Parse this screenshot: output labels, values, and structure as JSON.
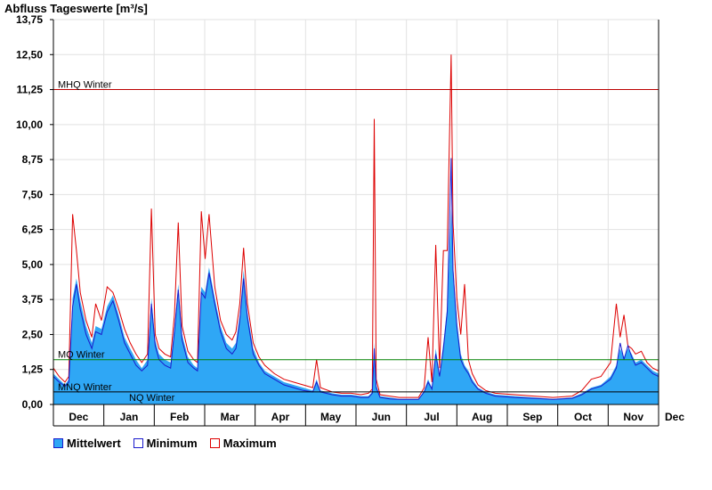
{
  "chart_data": {
    "type": "area",
    "title": "Abfluss Tageswerte [m³/s]",
    "ylim": [
      0,
      13.75
    ],
    "y_ticks": [
      "0,00",
      "1,25",
      "2,50",
      "3,75",
      "5,00",
      "6,25",
      "7,50",
      "8,75",
      "10,00",
      "11,25",
      "12,50",
      "13,75"
    ],
    "x_ticks": [
      "Dec",
      "Jan",
      "Feb",
      "Mar",
      "Apr",
      "May",
      "Jun",
      "Jul",
      "Aug",
      "Sep",
      "Oct",
      "Nov",
      "Dec"
    ],
    "grid": true,
    "colors": {
      "mittelwert": "#2fa7f5",
      "minimum": "#1a1acc",
      "maximum": "#dd0000",
      "mhq": "#bb0000",
      "mq": "#008000",
      "nq": "#000000"
    },
    "reference_lines": [
      {
        "label": "MHQ Winter",
        "value": 11.25
      },
      {
        "label": "MQ Winter",
        "value": 1.6
      },
      {
        "label": "MNQ Winter",
        "value": 0.45
      },
      {
        "label": "NQ Winter",
        "value": 0.45
      }
    ],
    "series": [
      {
        "name": "Mittelwert",
        "points": [
          [
            0,
            1.1
          ],
          [
            3,
            0.9
          ],
          [
            6,
            0.7
          ],
          [
            8,
            0.9
          ],
          [
            10,
            3.8
          ],
          [
            12,
            4.5
          ],
          [
            14,
            3.7
          ],
          [
            17,
            2.8
          ],
          [
            20,
            2.2
          ],
          [
            22,
            2.8
          ],
          [
            25,
            2.7
          ],
          [
            28,
            3.5
          ],
          [
            31,
            3.9
          ],
          [
            34,
            3.2
          ],
          [
            37,
            2.4
          ],
          [
            40,
            2.0
          ],
          [
            43,
            1.6
          ],
          [
            46,
            1.3
          ],
          [
            49,
            1.6
          ],
          [
            51,
            3.8
          ],
          [
            53,
            2.3
          ],
          [
            55,
            1.8
          ],
          [
            58,
            1.6
          ],
          [
            61,
            1.5
          ],
          [
            63,
            2.8
          ],
          [
            65,
            4.3
          ],
          [
            67,
            2.5
          ],
          [
            70,
            1.7
          ],
          [
            73,
            1.4
          ],
          [
            75,
            1.3
          ],
          [
            77,
            4.2
          ],
          [
            79,
            4.0
          ],
          [
            81,
            4.9
          ],
          [
            84,
            3.8
          ],
          [
            87,
            2.8
          ],
          [
            90,
            2.2
          ],
          [
            93,
            2.0
          ],
          [
            95,
            2.2
          ],
          [
            97,
            3.2
          ],
          [
            99,
            4.8
          ],
          [
            101,
            3.3
          ],
          [
            104,
            2.0
          ],
          [
            107,
            1.5
          ],
          [
            110,
            1.2
          ],
          [
            115,
            1.0
          ],
          [
            120,
            0.8
          ],
          [
            125,
            0.7
          ],
          [
            130,
            0.6
          ],
          [
            135,
            0.5
          ],
          [
            137,
            0.9
          ],
          [
            139,
            0.5
          ],
          [
            145,
            0.4
          ],
          [
            150,
            0.35
          ],
          [
            155,
            0.35
          ],
          [
            160,
            0.3
          ],
          [
            164,
            0.3
          ],
          [
            166,
            0.45
          ],
          [
            167,
            2.2
          ],
          [
            168,
            0.7
          ],
          [
            170,
            0.3
          ],
          [
            175,
            0.25
          ],
          [
            180,
            0.2
          ],
          [
            185,
            0.2
          ],
          [
            190,
            0.2
          ],
          [
            193,
            0.5
          ],
          [
            195,
            0.9
          ],
          [
            197,
            0.6
          ],
          [
            199,
            2.0
          ],
          [
            201,
            1.1
          ],
          [
            203,
            2.2
          ],
          [
            205,
            3.5
          ],
          [
            207,
            7.0
          ],
          [
            208,
            5.0
          ],
          [
            210,
            3.0
          ],
          [
            212,
            1.8
          ],
          [
            214,
            1.4
          ],
          [
            216,
            1.2
          ],
          [
            218,
            0.9
          ],
          [
            221,
            0.6
          ],
          [
            225,
            0.45
          ],
          [
            230,
            0.35
          ],
          [
            240,
            0.3
          ],
          [
            250,
            0.25
          ],
          [
            260,
            0.2
          ],
          [
            270,
            0.25
          ],
          [
            275,
            0.4
          ],
          [
            280,
            0.6
          ],
          [
            285,
            0.7
          ],
          [
            290,
            1.0
          ],
          [
            293,
            1.4
          ],
          [
            295,
            2.0
          ],
          [
            297,
            1.7
          ],
          [
            299,
            2.0
          ],
          [
            301,
            1.8
          ],
          [
            303,
            1.5
          ],
          [
            306,
            1.6
          ],
          [
            309,
            1.4
          ],
          [
            312,
            1.2
          ],
          [
            315,
            1.1
          ]
        ]
      },
      {
        "name": "Minimum",
        "points": [
          [
            0,
            1.0
          ],
          [
            3,
            0.8
          ],
          [
            6,
            0.65
          ],
          [
            8,
            0.8
          ],
          [
            10,
            3.5
          ],
          [
            12,
            4.3
          ],
          [
            14,
            3.4
          ],
          [
            17,
            2.5
          ],
          [
            20,
            2.0
          ],
          [
            22,
            2.6
          ],
          [
            25,
            2.5
          ],
          [
            28,
            3.3
          ],
          [
            31,
            3.7
          ],
          [
            34,
            3.0
          ],
          [
            37,
            2.2
          ],
          [
            40,
            1.8
          ],
          [
            43,
            1.4
          ],
          [
            46,
            1.2
          ],
          [
            49,
            1.4
          ],
          [
            51,
            3.6
          ],
          [
            53,
            2.1
          ],
          [
            55,
            1.6
          ],
          [
            58,
            1.4
          ],
          [
            61,
            1.3
          ],
          [
            63,
            2.6
          ],
          [
            65,
            4.1
          ],
          [
            67,
            2.3
          ],
          [
            70,
            1.5
          ],
          [
            73,
            1.3
          ],
          [
            75,
            1.2
          ],
          [
            77,
            4.0
          ],
          [
            79,
            3.8
          ],
          [
            81,
            4.7
          ],
          [
            84,
            3.6
          ],
          [
            87,
            2.6
          ],
          [
            90,
            2.0
          ],
          [
            93,
            1.8
          ],
          [
            95,
            2.0
          ],
          [
            97,
            3.0
          ],
          [
            99,
            4.5
          ],
          [
            101,
            3.1
          ],
          [
            104,
            1.8
          ],
          [
            107,
            1.4
          ],
          [
            110,
            1.1
          ],
          [
            115,
            0.9
          ],
          [
            120,
            0.7
          ],
          [
            125,
            0.6
          ],
          [
            130,
            0.5
          ],
          [
            135,
            0.45
          ],
          [
            137,
            0.8
          ],
          [
            139,
            0.45
          ],
          [
            145,
            0.35
          ],
          [
            150,
            0.3
          ],
          [
            155,
            0.3
          ],
          [
            160,
            0.25
          ],
          [
            164,
            0.25
          ],
          [
            166,
            0.4
          ],
          [
            167,
            2.0
          ],
          [
            168,
            0.6
          ],
          [
            170,
            0.25
          ],
          [
            175,
            0.2
          ],
          [
            180,
            0.18
          ],
          [
            185,
            0.18
          ],
          [
            190,
            0.18
          ],
          [
            193,
            0.45
          ],
          [
            195,
            0.8
          ],
          [
            197,
            0.55
          ],
          [
            199,
            1.8
          ],
          [
            201,
            1.0
          ],
          [
            203,
            2.0
          ],
          [
            205,
            3.3
          ],
          [
            207,
            8.8
          ],
          [
            208,
            4.8
          ],
          [
            210,
            2.8
          ],
          [
            212,
            1.6
          ],
          [
            214,
            1.3
          ],
          [
            216,
            1.1
          ],
          [
            218,
            0.8
          ],
          [
            221,
            0.55
          ],
          [
            225,
            0.4
          ],
          [
            230,
            0.3
          ],
          [
            240,
            0.25
          ],
          [
            250,
            0.22
          ],
          [
            260,
            0.18
          ],
          [
            270,
            0.22
          ],
          [
            275,
            0.35
          ],
          [
            280,
            0.55
          ],
          [
            285,
            0.65
          ],
          [
            290,
            0.9
          ],
          [
            293,
            1.3
          ],
          [
            295,
            2.2
          ],
          [
            297,
            1.6
          ],
          [
            299,
            2.1
          ],
          [
            301,
            1.7
          ],
          [
            303,
            1.4
          ],
          [
            306,
            1.5
          ],
          [
            309,
            1.3
          ],
          [
            312,
            1.1
          ],
          [
            315,
            1.0
          ]
        ]
      },
      {
        "name": "Maximum",
        "points": [
          [
            0,
            1.3
          ],
          [
            3,
            1.0
          ],
          [
            6,
            0.8
          ],
          [
            8,
            1.0
          ],
          [
            10,
            6.8
          ],
          [
            12,
            5.5
          ],
          [
            14,
            4.0
          ],
          [
            17,
            3.0
          ],
          [
            20,
            2.4
          ],
          [
            22,
            3.6
          ],
          [
            25,
            3.0
          ],
          [
            28,
            4.2
          ],
          [
            31,
            4.0
          ],
          [
            34,
            3.4
          ],
          [
            37,
            2.7
          ],
          [
            40,
            2.2
          ],
          [
            43,
            1.8
          ],
          [
            46,
            1.5
          ],
          [
            49,
            1.8
          ],
          [
            51,
            7.0
          ],
          [
            53,
            2.5
          ],
          [
            55,
            2.0
          ],
          [
            58,
            1.8
          ],
          [
            61,
            1.7
          ],
          [
            63,
            3.2
          ],
          [
            65,
            6.5
          ],
          [
            67,
            2.8
          ],
          [
            70,
            1.9
          ],
          [
            73,
            1.6
          ],
          [
            75,
            1.5
          ],
          [
            77,
            6.9
          ],
          [
            79,
            5.2
          ],
          [
            81,
            6.8
          ],
          [
            84,
            4.2
          ],
          [
            87,
            3.0
          ],
          [
            90,
            2.5
          ],
          [
            93,
            2.3
          ],
          [
            95,
            2.6
          ],
          [
            97,
            3.6
          ],
          [
            99,
            5.6
          ],
          [
            101,
            3.6
          ],
          [
            104,
            2.2
          ],
          [
            107,
            1.7
          ],
          [
            110,
            1.4
          ],
          [
            115,
            1.1
          ],
          [
            120,
            0.9
          ],
          [
            125,
            0.8
          ],
          [
            130,
            0.7
          ],
          [
            135,
            0.6
          ],
          [
            137,
            1.6
          ],
          [
            139,
            0.6
          ],
          [
            145,
            0.45
          ],
          [
            150,
            0.4
          ],
          [
            155,
            0.4
          ],
          [
            160,
            0.35
          ],
          [
            164,
            0.4
          ],
          [
            166,
            0.55
          ],
          [
            167,
            10.2
          ],
          [
            168,
            0.9
          ],
          [
            170,
            0.35
          ],
          [
            175,
            0.3
          ],
          [
            180,
            0.25
          ],
          [
            185,
            0.25
          ],
          [
            190,
            0.25
          ],
          [
            193,
            0.6
          ],
          [
            195,
            2.4
          ],
          [
            197,
            0.8
          ],
          [
            199,
            5.7
          ],
          [
            201,
            1.3
          ],
          [
            203,
            5.5
          ],
          [
            205,
            5.5
          ],
          [
            207,
            12.5
          ],
          [
            208,
            6.5
          ],
          [
            210,
            3.8
          ],
          [
            212,
            2.5
          ],
          [
            214,
            4.3
          ],
          [
            216,
            1.6
          ],
          [
            218,
            1.1
          ],
          [
            221,
            0.7
          ],
          [
            225,
            0.5
          ],
          [
            230,
            0.4
          ],
          [
            240,
            0.35
          ],
          [
            250,
            0.3
          ],
          [
            260,
            0.25
          ],
          [
            270,
            0.3
          ],
          [
            275,
            0.5
          ],
          [
            280,
            0.9
          ],
          [
            285,
            1.0
          ],
          [
            290,
            1.5
          ],
          [
            293,
            3.6
          ],
          [
            295,
            2.4
          ],
          [
            297,
            3.2
          ],
          [
            299,
            2.1
          ],
          [
            301,
            2.0
          ],
          [
            303,
            1.8
          ],
          [
            306,
            1.9
          ],
          [
            309,
            1.5
          ],
          [
            312,
            1.3
          ],
          [
            315,
            1.2
          ]
        ]
      }
    ]
  },
  "legend": [
    {
      "label": "Mittelwert"
    },
    {
      "label": "Minimum"
    },
    {
      "label": "Maximum"
    }
  ]
}
